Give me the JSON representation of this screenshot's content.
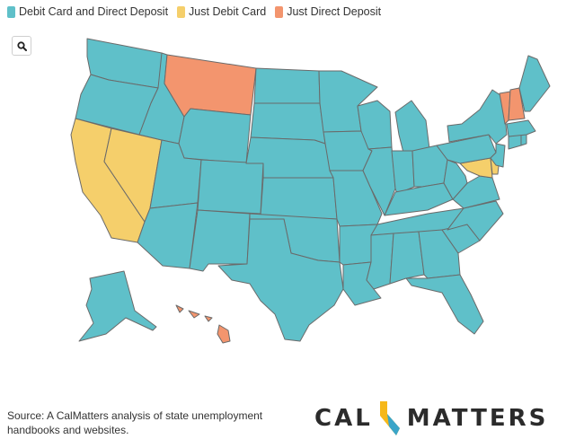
{
  "legend": {
    "items": [
      {
        "label": "Debit Card and Direct Deposit",
        "color": "#5fc0c9"
      },
      {
        "label": "Just Debit Card",
        "color": "#f5cf6b"
      },
      {
        "label": "Just Direct Deposit",
        "color": "#f3956e"
      }
    ]
  },
  "zoom_button": {
    "icon": "search-icon"
  },
  "colors": {
    "both": "#5fc0c9",
    "debit": "#f5cf6b",
    "direct": "#f3956e",
    "border": "#6a6a6a"
  },
  "map_data": {
    "categories": {
      "both": "Debit Card and Direct Deposit",
      "debit": "Just Debit Card",
      "direct": "Just Direct Deposit"
    },
    "states": {
      "Washington": "both",
      "Oregon": "both",
      "California": "debit",
      "Nevada": "debit",
      "Idaho": "both",
      "Montana": "direct",
      "Wyoming": "both",
      "Utah": "both",
      "Arizona": "both",
      "Colorado": "both",
      "New Mexico": "both",
      "North Dakota": "both",
      "South Dakota": "both",
      "Nebraska": "both",
      "Kansas": "both",
      "Oklahoma": "both",
      "Texas": "both",
      "Minnesota": "both",
      "Iowa": "both",
      "Missouri": "both",
      "Arkansas": "both",
      "Louisiana": "both",
      "Wisconsin": "both",
      "Illinois": "both",
      "Michigan": "both",
      "Indiana": "both",
      "Ohio": "both",
      "Kentucky": "both",
      "Tennessee": "both",
      "Mississippi": "both",
      "Alabama": "both",
      "Georgia": "both",
      "Florida": "both",
      "South Carolina": "both",
      "North Carolina": "both",
      "Virginia": "both",
      "West Virginia": "both",
      "Maryland": "debit",
      "Delaware": "debit",
      "Pennsylvania": "both",
      "New Jersey": "both",
      "New York": "both",
      "Connecticut": "both",
      "Rhode Island": "both",
      "Massachusetts": "both",
      "Vermont": "direct",
      "New Hampshire": "direct",
      "Maine": "both",
      "Alaska": "both",
      "Hawaii": "direct"
    }
  },
  "source": {
    "text": "Source: A CalMatters analysis of state unemployment handbooks and websites."
  },
  "logo": {
    "left": "CAL",
    "right": "MATTERS"
  }
}
